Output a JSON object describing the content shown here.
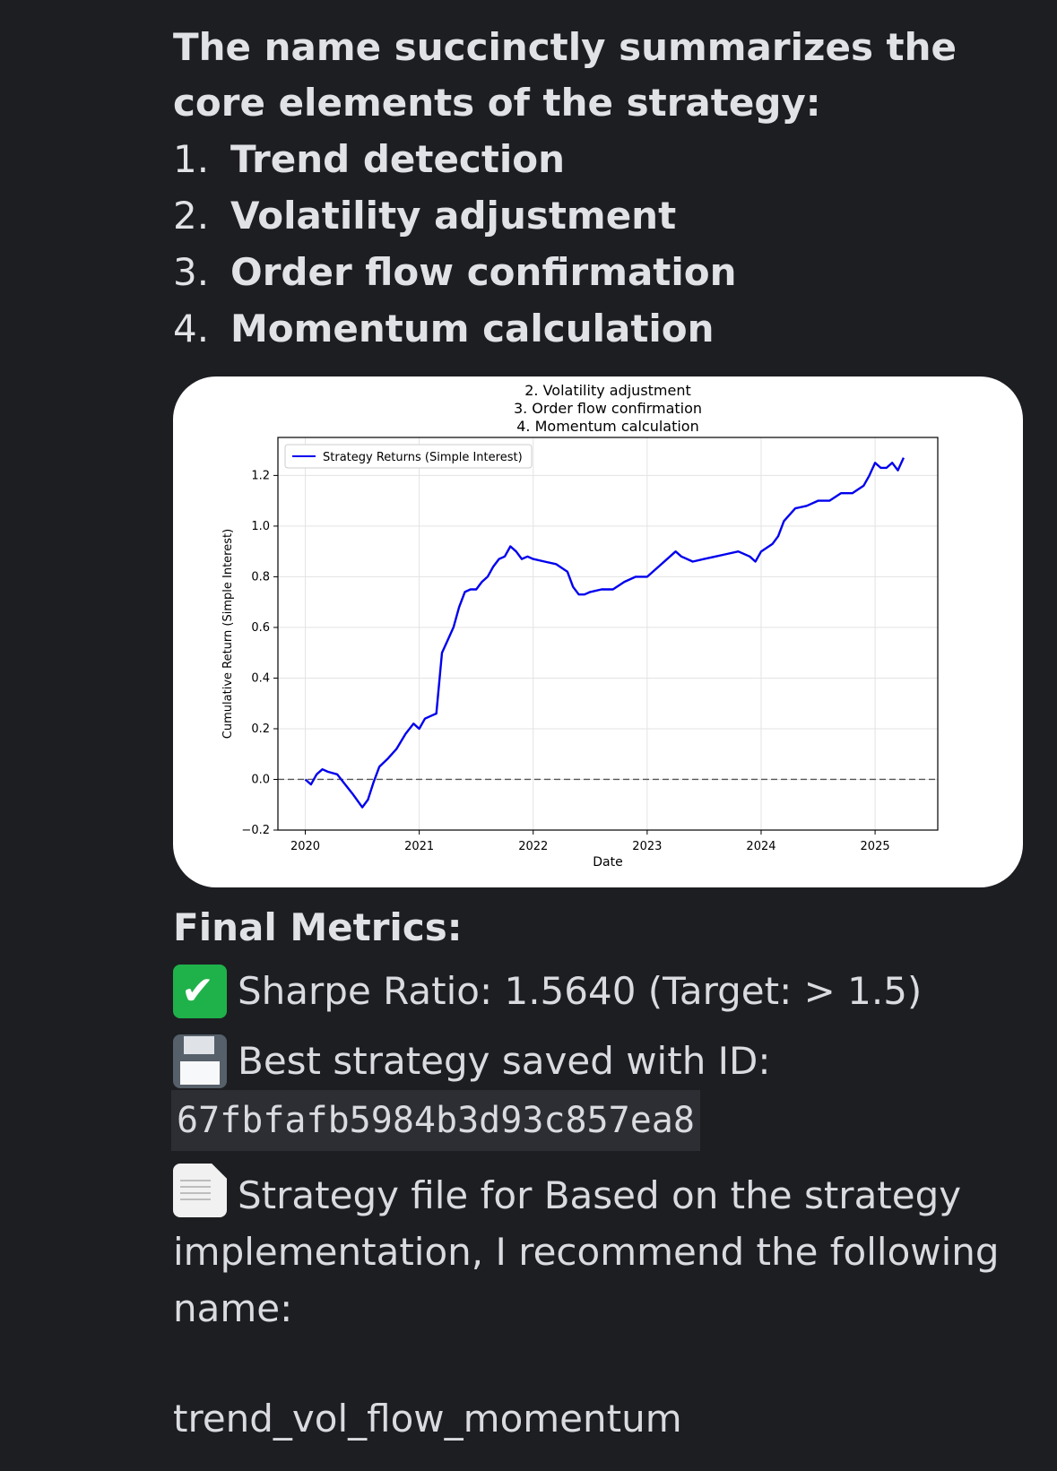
{
  "intro": "The name succinctly summarizes the core elements of the strategy:",
  "elements": [
    {
      "num": "1.",
      "label": "Trend detection"
    },
    {
      "num": "2.",
      "label": "Volatility adjustment"
    },
    {
      "num": "3.",
      "label": "Order flow confirmation"
    },
    {
      "num": "4.",
      "label": "Momentum calculation"
    }
  ],
  "chart_data": {
    "type": "line",
    "title_lines": [
      "2. Volatility adjustment",
      "3. Order flow confirmation",
      "4. Momentum calculation"
    ],
    "xlabel": "Date",
    "ylabel": "Cumulative Return (Simple Interest)",
    "xticks": [
      "2020",
      "2021",
      "2022",
      "2023",
      "2024",
      "2025"
    ],
    "yticks": [
      "−0.2",
      "0.0",
      "0.2",
      "0.4",
      "0.6",
      "0.8",
      "1.0",
      "1.2"
    ],
    "xlim": [
      2019.76,
      2025.55
    ],
    "ylim": [
      -0.2,
      1.35
    ],
    "grid": true,
    "legend_position": "top-left",
    "baseline": 0.0,
    "series": [
      {
        "name": "Strategy Returns (Simple Interest)",
        "color": "#0000ee",
        "x": [
          2020.0,
          2020.05,
          2020.1,
          2020.15,
          2020.2,
          2020.28,
          2020.35,
          2020.42,
          2020.5,
          2020.55,
          2020.6,
          2020.65,
          2020.72,
          2020.8,
          2020.88,
          2020.95,
          2021.0,
          2021.05,
          2021.1,
          2021.15,
          2021.2,
          2021.25,
          2021.3,
          2021.35,
          2021.4,
          2021.45,
          2021.5,
          2021.55,
          2021.6,
          2021.65,
          2021.7,
          2021.75,
          2021.8,
          2021.85,
          2021.9,
          2021.95,
          2022.0,
          2022.1,
          2022.2,
          2022.3,
          2022.35,
          2022.4,
          2022.45,
          2022.5,
          2022.6,
          2022.7,
          2022.8,
          2022.9,
          2023.0,
          2023.1,
          2023.2,
          2023.25,
          2023.3,
          2023.4,
          2023.5,
          2023.6,
          2023.7,
          2023.8,
          2023.9,
          2023.95,
          2024.0,
          2024.1,
          2024.15,
          2024.2,
          2024.3,
          2024.4,
          2024.5,
          2024.6,
          2024.7,
          2024.8,
          2024.9,
          2024.95,
          2025.0,
          2025.05,
          2025.1,
          2025.15,
          2025.2,
          2025.25
        ],
        "y": [
          0.0,
          -0.02,
          0.02,
          0.04,
          0.03,
          0.02,
          -0.02,
          -0.06,
          -0.11,
          -0.08,
          -0.01,
          0.05,
          0.08,
          0.12,
          0.18,
          0.22,
          0.2,
          0.24,
          0.25,
          0.26,
          0.5,
          0.55,
          0.6,
          0.68,
          0.74,
          0.75,
          0.75,
          0.78,
          0.8,
          0.84,
          0.87,
          0.88,
          0.92,
          0.9,
          0.87,
          0.88,
          0.87,
          0.86,
          0.85,
          0.82,
          0.76,
          0.73,
          0.73,
          0.74,
          0.75,
          0.75,
          0.78,
          0.8,
          0.8,
          0.84,
          0.88,
          0.9,
          0.88,
          0.86,
          0.87,
          0.88,
          0.89,
          0.9,
          0.88,
          0.86,
          0.9,
          0.93,
          0.96,
          1.02,
          1.07,
          1.08,
          1.1,
          1.1,
          1.13,
          1.13,
          1.16,
          1.2,
          1.25,
          1.23,
          1.23,
          1.25,
          1.22,
          1.27
        ]
      }
    ]
  },
  "metrics": {
    "title": "Final Metrics:",
    "sharpe_text": "Sharpe Ratio: 1.5640 (Target: > 1.5)",
    "saved_text": "Best strategy saved with ID:",
    "saved_id": "67fbfafb5984b3d93c857ea8",
    "file_text": "Strategy file for Based on the strategy implementation, I recommend the following name:",
    "name": "trend_vol_flow_momentum"
  },
  "icons": {
    "sharpe": "check-mark-button-icon",
    "saved": "floppy-disk-icon",
    "file": "page-facing-up-icon"
  }
}
